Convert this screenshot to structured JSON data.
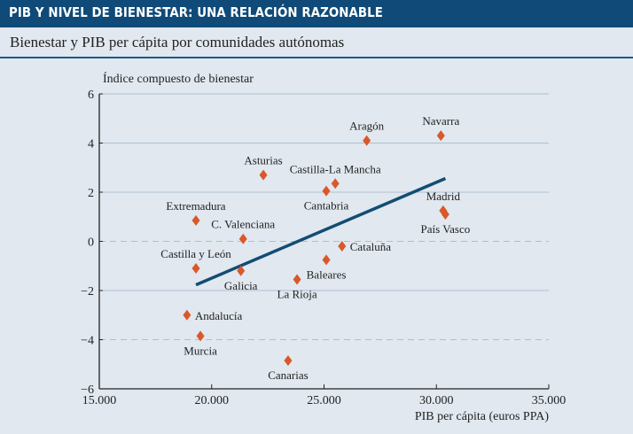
{
  "header": {
    "title": "PIB Y NIVEL DE BIENESTAR: UNA RELACIÓN RAZONABLE",
    "subtitle": "Bienestar y PIB per cápita por comunidades autónomas"
  },
  "colors": {
    "header_bg": "#0f4a78",
    "marker": "#d9582a",
    "trend": "#124d73",
    "grid": "#aebfd0"
  },
  "chart_data": {
    "type": "scatter",
    "title": "Bienestar y PIB per cápita por comunidades autónomas",
    "xlabel": "PIB per cápita (euros PPA)",
    "ylabel": "Índice compuesto de bienestar",
    "xlim": [
      15000,
      35000
    ],
    "ylim": [
      -6,
      6
    ],
    "xticks": [
      15000,
      20000,
      25000,
      30000,
      35000
    ],
    "xtick_labels": [
      "15.000",
      "20.000",
      "25.000",
      "30.000",
      "35.000"
    ],
    "yticks": [
      6,
      4,
      2,
      0,
      -2,
      -4,
      -6
    ],
    "ytick_labels": [
      "6",
      "4",
      "2",
      "0",
      "−2",
      "−4",
      "−6"
    ],
    "dashed_gridlines": [
      0,
      -4
    ],
    "grid": true,
    "points": [
      {
        "label": "Navarra",
        "x": 30200,
        "y": 4.3,
        "label_pos": "above"
      },
      {
        "label": "Aragón",
        "x": 26900,
        "y": 4.1,
        "label_pos": "above"
      },
      {
        "label": "Asturias",
        "x": 22300,
        "y": 2.7,
        "label_pos": "above"
      },
      {
        "label": "Castilla-La Mancha",
        "x": 25500,
        "y": 2.35,
        "label_pos": "above"
      },
      {
        "label": "Cantabria",
        "x": 25100,
        "y": 2.05,
        "label_pos": "below"
      },
      {
        "label": "Madrid",
        "x": 30300,
        "y": 1.25,
        "label_pos": "above"
      },
      {
        "label": "País Vasco",
        "x": 30400,
        "y": 1.1,
        "label_pos": "below"
      },
      {
        "label": "Extremadura",
        "x": 19300,
        "y": 0.85,
        "label_pos": "above"
      },
      {
        "label": "C. Valenciana",
        "x": 21400,
        "y": 0.1,
        "label_pos": "above"
      },
      {
        "label": "Cataluña",
        "x": 25800,
        "y": -0.2,
        "label_pos": "right"
      },
      {
        "label": "Baleares",
        "x": 25100,
        "y": -0.75,
        "label_pos": "below"
      },
      {
        "label": "Castilla y León",
        "x": 19300,
        "y": -1.1,
        "label_pos": "above"
      },
      {
        "label": "Galicia",
        "x": 21300,
        "y": -1.2,
        "label_pos": "below"
      },
      {
        "label": "La Rioja",
        "x": 23800,
        "y": -1.55,
        "label_pos": "below"
      },
      {
        "label": "Andalucía",
        "x": 18900,
        "y": -3.0,
        "label_pos": "right"
      },
      {
        "label": "Murcia",
        "x": 19500,
        "y": -3.85,
        "label_pos": "below"
      },
      {
        "label": "Canarias",
        "x": 23400,
        "y": -4.85,
        "label_pos": "below"
      }
    ],
    "trend_line": {
      "x": [
        19300,
        30400
      ],
      "y": [
        -1.77,
        2.56
      ]
    }
  }
}
